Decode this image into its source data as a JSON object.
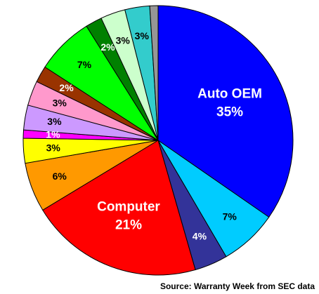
{
  "chart_data": {
    "type": "pie",
    "categories": [
      "Auto OEM",
      null,
      null,
      "Computer",
      null,
      null,
      null,
      null,
      null,
      null,
      null,
      null,
      null,
      null,
      null
    ],
    "values": [
      35,
      7,
      4,
      21,
      6,
      3,
      1,
      3,
      3,
      2,
      7,
      2,
      3,
      3,
      1
    ],
    "value_labels": [
      "35%",
      "7%",
      "4%",
      "21%",
      "6%",
      "3%",
      "1%",
      "3%",
      "3%",
      "2%",
      "7%",
      "2%",
      "3%",
      "3%",
      null
    ],
    "colors": [
      "#0000ff",
      "#00ccff",
      "#333399",
      "#ff0000",
      "#ff9900",
      "#ffff00",
      "#ff00ff",
      "#cc99ff",
      "#ff99cc",
      "#993300",
      "#00ff00",
      "#008000",
      "#ccffcc",
      "#33cccc",
      "#969696"
    ],
    "source": "Source: Warranty Week from SEC data"
  }
}
